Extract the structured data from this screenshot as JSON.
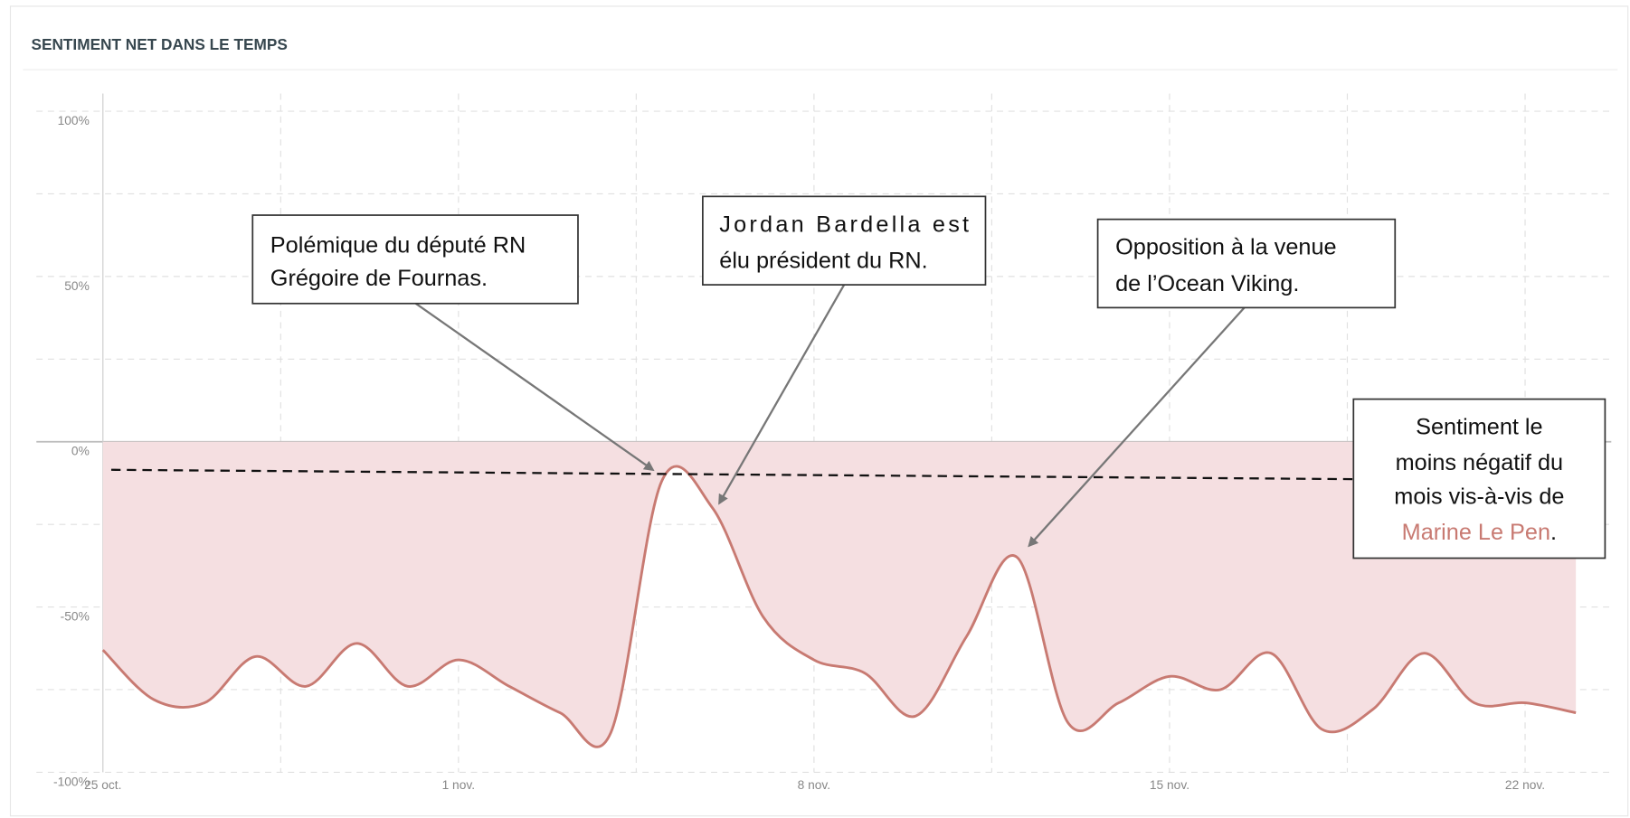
{
  "chart_data": {
    "type": "area",
    "title": "SENTIMENT NET DANS LE TEMPS",
    "categories": [
      "25 oct.",
      null,
      null,
      null,
      null,
      null,
      null,
      "1 nov.",
      null,
      null,
      null,
      null,
      null,
      null,
      "8 nov.",
      null,
      null,
      null,
      null,
      null,
      null,
      "15 nov.",
      null,
      null,
      null,
      null,
      null,
      null,
      "22 nov.",
      null
    ],
    "series": [
      {
        "color": "#c87a72",
        "fill": "#f5dfe1",
        "values": [
          -63,
          -78,
          -79,
          -65,
          -74,
          -61,
          -74,
          -66,
          -74,
          -82,
          -88,
          -12,
          -20,
          -53,
          -66,
          -70,
          -83,
          -59,
          -35,
          -85,
          -79,
          -71,
          -75,
          -64,
          -87,
          -81,
          -64,
          -79,
          -79,
          -82
        ]
      }
    ],
    "ylim": [
      -100,
      100
    ],
    "yticks": [
      {
        "value": -100,
        "label": "-100%"
      },
      {
        "value": -50,
        "label": "-50%"
      },
      {
        "value": 0,
        "label": "0%"
      },
      {
        "value": 50,
        "label": "50%"
      },
      {
        "value": 100,
        "label": "100%"
      }
    ],
    "ygrid": [
      -75,
      -25,
      25,
      75
    ],
    "grid": true,
    "annotations": [
      {
        "lines": [
          "Polémique du député RN",
          "Grégoire de Fournas."
        ]
      },
      {
        "lines": [
          "Jordan Bardella est",
          "élu président du RN."
        ]
      },
      {
        "lines": [
          "Opposition à la venue",
          "de l’Ocean Viking."
        ]
      },
      {
        "lines": [
          "Sentiment le",
          "moins négatif du",
          "mois vis-à-vis de"
        ],
        "highlight": "Marine Le Pen",
        "tail": ".",
        "highlight_color": "#c87a72"
      }
    ]
  }
}
